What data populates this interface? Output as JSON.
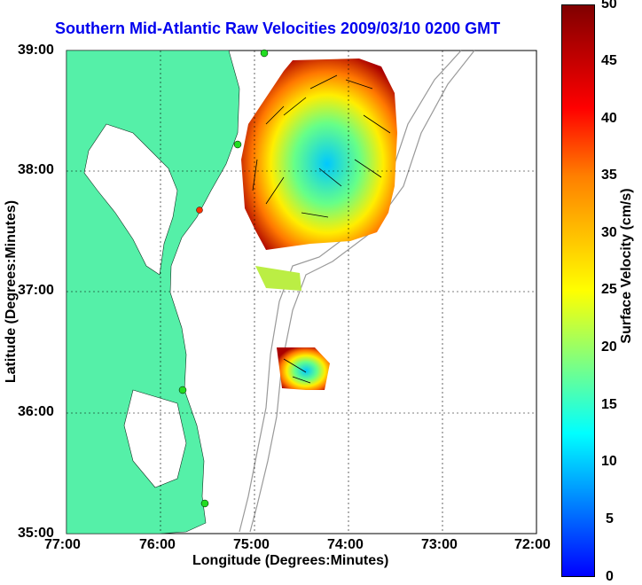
{
  "title": "Southern Mid-Atlantic Raw Velocities 2009/03/10 0200 GMT",
  "axes": {
    "xlabel": "Longitude (Degrees:Minutes)",
    "ylabel": "Latitude (Degrees:Minutes)",
    "xticks": [
      "77:00",
      "76:00",
      "75:00",
      "74:00",
      "73:00",
      "72:00"
    ],
    "yticks": [
      "39:00",
      "38:00",
      "37:00",
      "36:00",
      "35:00"
    ],
    "x_range_deg_west": [
      77,
      72
    ],
    "y_range_deg_north": [
      35,
      39
    ],
    "grid": "dotted"
  },
  "colorbar": {
    "label": "Surface Velocity (cm/s)",
    "ticks": [
      "50",
      "45",
      "40",
      "35",
      "30",
      "25",
      "20",
      "15",
      "10",
      "5",
      "0"
    ],
    "range": [
      0,
      50
    ],
    "colormap": "jet"
  },
  "colors": {
    "land": "#55f0a8",
    "title_text": "#0000ee",
    "station_marker": "#22dd22",
    "active_marker": "#ff3300"
  }
}
